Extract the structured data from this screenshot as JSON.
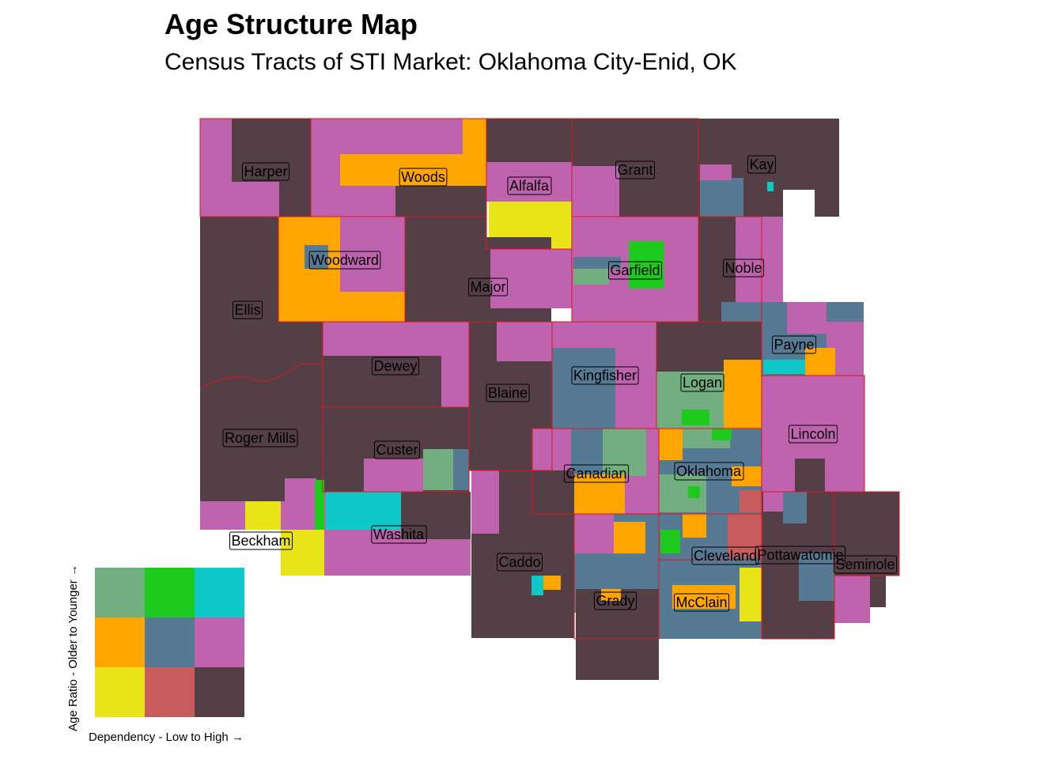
{
  "title": "Age Structure Map",
  "subtitle": "Census Tracts of STI Market: Oklahoma City-Enid, OK",
  "colors": {
    "c11": "#73AE80",
    "c21": "#1ECA1E",
    "c31": "#0FC8C8",
    "c12": "#FFA500",
    "c22": "#577A94",
    "c32": "#BF63AE",
    "c13": "#E8E418",
    "c23": "#C85B5B",
    "c33": "#543F47",
    "county_border": "#E2131F"
  },
  "counties": [
    "Harper",
    "Woods",
    "Alfalfa",
    "Grant",
    "Kay",
    "Woodward",
    "Garfield",
    "Noble",
    "Major",
    "Ellis",
    "Payne",
    "Dewey",
    "Kingfisher",
    "Logan",
    "Blaine",
    "Lincoln",
    "Roger Mills",
    "Custer",
    "Canadian",
    "Oklahoma",
    "Beckham",
    "Washita",
    "Caddo",
    "Cleveland",
    "Pottawatomie",
    "Seminole",
    "Grady",
    "McClain"
  ],
  "legend": {
    "y_label": "Age Ratio - Older to Younger →",
    "x_label": "Dependency - Low to High →"
  }
}
